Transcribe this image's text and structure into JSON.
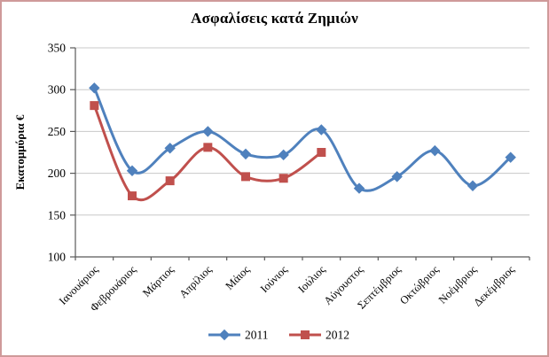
{
  "chart": {
    "border_color": "#cf9a9a",
    "background": "#ffffff"
  },
  "axis": {
    "line_color": "#595959",
    "grid_color": "#c8c8c8",
    "text_color": "#000000"
  },
  "chart_data": {
    "type": "line",
    "title": "Ασφαλίσεις κατά Ζημιών",
    "ylabel": "Εκατομμύρια €",
    "xlabel": "",
    "ylim": [
      100,
      350
    ],
    "ytick_step": 50,
    "grid": true,
    "line_style": "smooth",
    "legend_position": "bottom",
    "categories": [
      "Ιανουάριος",
      "Φεβρουάριος",
      "Μάρτιος",
      "Απρίλιος",
      "Μάιος",
      "Ιούνιος",
      "Ιούλιος",
      "Αύγουστος",
      "Σεπτέμβριος",
      "Οκτώβριος",
      "Νοέμβριος",
      "Δεκέμβριος"
    ],
    "series": [
      {
        "name": "2011",
        "color": "#4f81bd",
        "marker": "diamond",
        "values": [
          302,
          203,
          230,
          250,
          223,
          222,
          252,
          182,
          196,
          227,
          185,
          219
        ]
      },
      {
        "name": "2012",
        "color": "#c0504d",
        "marker": "square",
        "values": [
          281,
          173,
          191,
          231,
          196,
          194,
          225,
          null,
          null,
          null,
          null,
          null
        ]
      }
    ]
  }
}
